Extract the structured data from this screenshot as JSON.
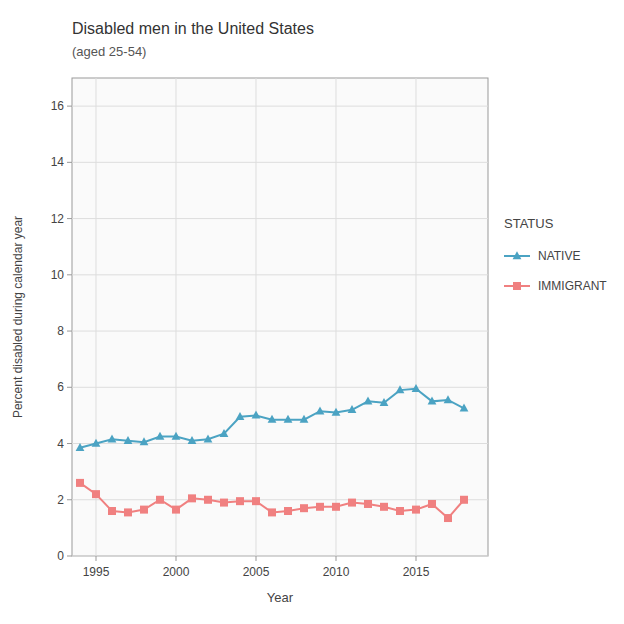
{
  "chart_data": {
    "type": "line",
    "title": "Disabled men in the United States",
    "subtitle": "(aged 25-54)",
    "x_label": "Year",
    "y_label": "Percent disabled during calendar year",
    "x": [
      1994,
      1995,
      1996,
      1997,
      1998,
      1999,
      2000,
      2001,
      2002,
      2003,
      2004,
      2005,
      2006,
      2007,
      2008,
      2009,
      2010,
      2011,
      2012,
      2013,
      2014,
      2015,
      2016,
      2017,
      2018
    ],
    "series": [
      {
        "name": "NATIVE",
        "color": "#4BA3C3",
        "marker": "triangle",
        "values": [
          3.85,
          4.0,
          4.15,
          4.1,
          4.05,
          4.25,
          4.25,
          4.1,
          4.15,
          4.35,
          4.95,
          5.0,
          4.85,
          4.85,
          4.85,
          5.15,
          5.1,
          5.2,
          5.5,
          5.45,
          5.9,
          5.95,
          5.5,
          5.55,
          5.25
        ]
      },
      {
        "name": "IMMIGRANT",
        "color": "#F08080",
        "marker": "square",
        "values": [
          2.6,
          2.2,
          1.6,
          1.55,
          1.65,
          2.0,
          1.65,
          2.05,
          2.0,
          1.9,
          1.95,
          1.95,
          1.55,
          1.6,
          1.7,
          1.75,
          1.75,
          1.9,
          1.85,
          1.75,
          1.6,
          1.65,
          1.85,
          1.35,
          2.0
        ]
      }
    ],
    "legend_title": "STATUS",
    "legend": "right",
    "xlim": [
      1993.5,
      2019.5
    ],
    "ylim": [
      0,
      17
    ],
    "xticks": [
      1995,
      2000,
      2005,
      2010,
      2015
    ],
    "yticks": [
      0,
      2,
      4,
      6,
      8,
      10,
      12,
      14,
      16
    ],
    "grid": true
  }
}
